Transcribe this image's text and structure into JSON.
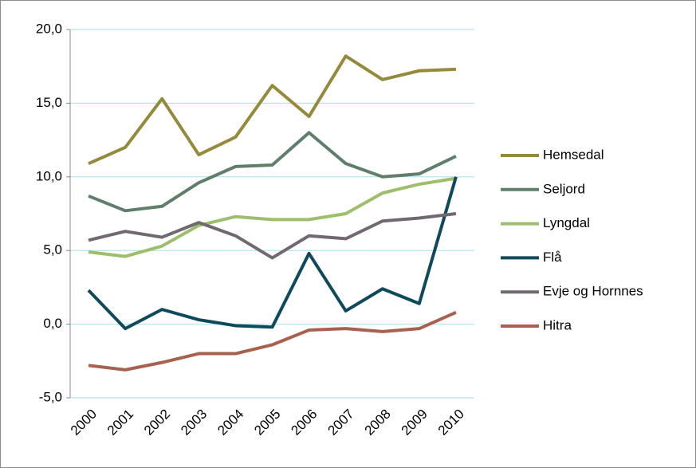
{
  "chart_data": {
    "type": "line",
    "categories": [
      "2000",
      "2001",
      "2002",
      "2003",
      "2004",
      "2005",
      "2006",
      "2007",
      "2008",
      "2009",
      "2010"
    ],
    "series": [
      {
        "name": "Hemsedal",
        "color": "#948a3c",
        "values": [
          10.9,
          12.0,
          15.3,
          11.5,
          12.7,
          16.2,
          14.1,
          18.2,
          16.6,
          17.2,
          17.3
        ]
      },
      {
        "name": "Seljord",
        "color": "#5f7f6c",
        "values": [
          8.7,
          7.7,
          8.0,
          9.6,
          10.7,
          10.8,
          13.0,
          10.9,
          10.0,
          10.2,
          11.4
        ]
      },
      {
        "name": "Lyngdal",
        "color": "#9dbf6c",
        "values": [
          4.9,
          4.6,
          5.3,
          6.7,
          7.3,
          7.1,
          7.1,
          7.5,
          8.9,
          9.5,
          9.9
        ]
      },
      {
        "name": "Flå",
        "color": "#0f4a5c",
        "values": [
          2.3,
          -0.3,
          1.0,
          0.3,
          -0.1,
          -0.2,
          4.8,
          0.9,
          2.4,
          1.4,
          10.0
        ]
      },
      {
        "name": "Evje og Hornnes",
        "color": "#716872",
        "values": [
          5.7,
          6.3,
          5.9,
          6.9,
          6.0,
          4.5,
          6.0,
          5.8,
          7.0,
          7.2,
          7.5
        ]
      },
      {
        "name": "Hitra",
        "color": "#a9614f",
        "values": [
          -2.8,
          -3.1,
          -2.6,
          -2.0,
          -2.0,
          -1.4,
          -0.4,
          -0.3,
          -0.5,
          -0.3,
          0.8
        ]
      }
    ],
    "ylim": [
      -5,
      20
    ],
    "yticks": [
      {
        "value": -5,
        "label": "-5,0"
      },
      {
        "value": 0,
        "label": "0,0"
      },
      {
        "value": 5,
        "label": "5,0"
      },
      {
        "value": 10,
        "label": "10,0"
      },
      {
        "value": 15,
        "label": "15,0"
      },
      {
        "value": 20,
        "label": "20,0"
      }
    ],
    "grid": true,
    "legend": "right"
  }
}
